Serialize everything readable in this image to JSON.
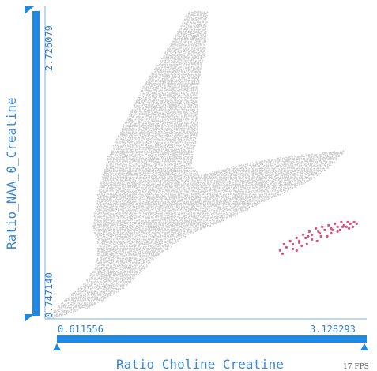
{
  "chart_data": {
    "type": "scatter",
    "title": "",
    "xlabel": "Ratio Choline Creatine",
    "ylabel": "Ratio_NAA_0_Creatine",
    "xlim": [
      0.611556,
      3.128293
    ],
    "ylim": [
      0.74714,
      2.726079
    ],
    "x_ticks": [
      "0.611556",
      "3.128293"
    ],
    "y_ticks": [
      "0.747140",
      "2.726079"
    ],
    "grid": false,
    "series": [
      {
        "role": "context",
        "color": "#cccccc",
        "shape": [
          [
            0.615,
            0.75
          ],
          [
            0.7,
            0.82
          ],
          [
            0.8,
            0.9
          ],
          [
            0.92,
            0.98
          ],
          [
            1.0,
            1.08
          ],
          [
            1.02,
            1.2
          ],
          [
            0.98,
            1.34
          ],
          [
            1.02,
            1.55
          ],
          [
            1.1,
            1.78
          ],
          [
            1.22,
            1.98
          ],
          [
            1.38,
            2.23
          ],
          [
            1.58,
            2.48
          ],
          [
            1.73,
            2.7
          ],
          [
            1.88,
            2.7
          ],
          [
            1.86,
            2.45
          ],
          [
            1.8,
            2.2
          ],
          [
            1.8,
            1.92
          ],
          [
            1.75,
            1.73
          ],
          [
            1.82,
            1.66
          ],
          [
            2.08,
            1.72
          ],
          [
            2.5,
            1.78
          ],
          [
            2.96,
            1.82
          ],
          [
            2.82,
            1.7
          ],
          [
            2.62,
            1.6
          ],
          [
            2.35,
            1.5
          ],
          [
            2.02,
            1.38
          ],
          [
            1.72,
            1.28
          ],
          [
            1.45,
            1.12
          ],
          [
            1.22,
            0.94
          ],
          [
            0.95,
            0.82
          ],
          [
            0.7,
            0.76
          ]
        ]
      },
      {
        "role": "highlight",
        "color": "#d9547f",
        "points": [
          [
            2.45,
            1.18
          ],
          [
            2.5,
            1.2
          ],
          [
            2.55,
            1.22
          ],
          [
            2.6,
            1.24
          ],
          [
            2.65,
            1.26
          ],
          [
            2.7,
            1.28
          ],
          [
            2.75,
            1.3
          ],
          [
            2.8,
            1.31
          ],
          [
            2.85,
            1.32
          ],
          [
            2.9,
            1.33
          ],
          [
            2.95,
            1.34
          ],
          [
            3.0,
            1.35
          ],
          [
            3.05,
            1.35
          ],
          [
            2.48,
            1.22
          ],
          [
            2.53,
            1.24
          ],
          [
            2.58,
            1.26
          ],
          [
            2.63,
            1.28
          ],
          [
            2.68,
            1.3
          ],
          [
            2.73,
            1.32
          ],
          [
            2.78,
            1.33
          ],
          [
            2.83,
            1.34
          ],
          [
            2.88,
            1.35
          ],
          [
            2.93,
            1.36
          ],
          [
            2.98,
            1.36
          ],
          [
            3.03,
            1.36
          ],
          [
            2.55,
            1.19
          ],
          [
            2.62,
            1.21
          ],
          [
            2.7,
            1.25
          ],
          [
            2.77,
            1.27
          ],
          [
            2.85,
            1.29
          ],
          [
            2.92,
            1.31
          ],
          [
            2.99,
            1.32
          ],
          [
            2.47,
            1.16
          ],
          [
            2.58,
            1.18
          ],
          [
            2.66,
            1.22
          ],
          [
            2.74,
            1.24
          ],
          [
            2.82,
            1.27
          ],
          [
            2.9,
            1.3
          ],
          [
            2.97,
            1.33
          ],
          [
            3.02,
            1.33
          ],
          [
            2.6,
            1.23
          ],
          [
            2.67,
            1.27
          ],
          [
            2.76,
            1.29
          ],
          [
            2.86,
            1.31
          ],
          [
            2.94,
            1.33
          ]
        ]
      }
    ]
  },
  "status": {
    "fps": "17 FPS"
  }
}
